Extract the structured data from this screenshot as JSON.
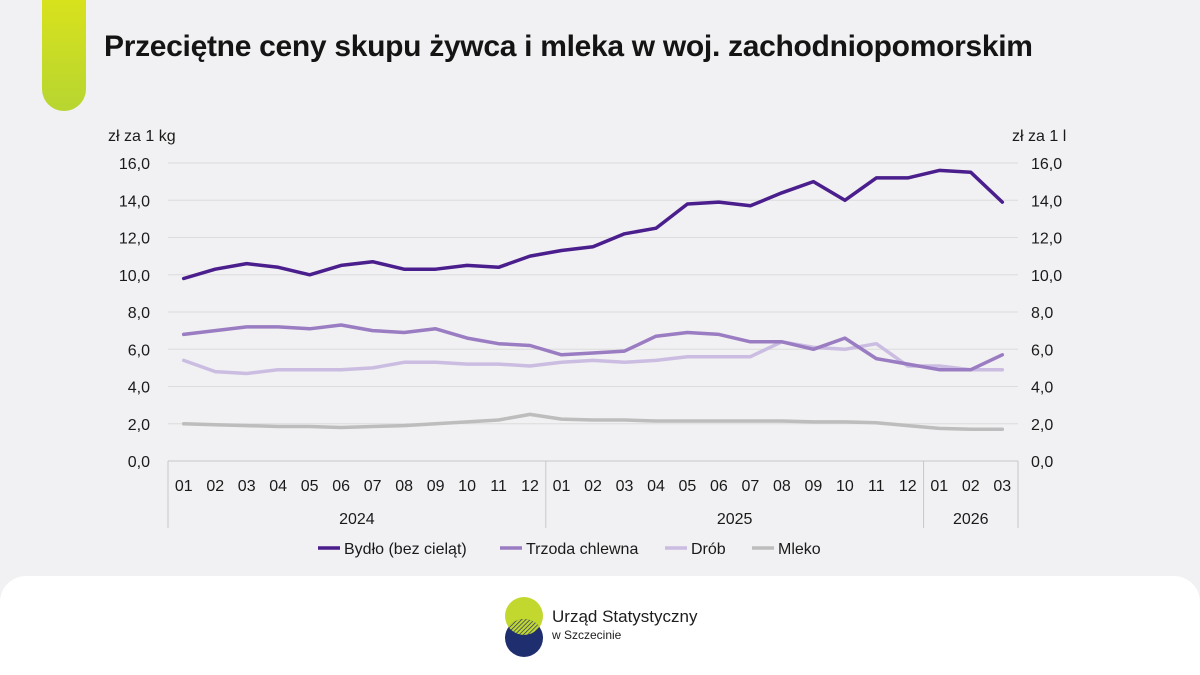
{
  "title": "Przeciętne ceny skupu żywca i mleka w woj. zachodniopomorskim",
  "logo": {
    "line1": "Urząd Statystyczny",
    "line2": "w Szczecinie"
  },
  "colors": {
    "background": "#f1f0f2",
    "accent": "#c8dc28",
    "logo_green": "#c3d82e",
    "logo_navy": "#1f2e6e"
  },
  "chart_data": {
    "type": "line",
    "title": "Przeciętne ceny skupu żywca i mleka w woj. zachodniopomorskim",
    "ylabel": "zł za 1 kg",
    "y2label": "zł za 1 l",
    "ylim": [
      0,
      16
    ],
    "yticks": [
      "0,0",
      "2,0",
      "4,0",
      "6,0",
      "8,0",
      "10,0",
      "12,0",
      "14,0",
      "16,0"
    ],
    "grid": true,
    "legend_position": "bottom",
    "categories": [
      "01",
      "02",
      "03",
      "04",
      "05",
      "06",
      "07",
      "08",
      "09",
      "10",
      "11",
      "12",
      "01",
      "02",
      "03",
      "04",
      "05",
      "06",
      "07",
      "08",
      "09",
      "10",
      "11",
      "12",
      "01",
      "02",
      "03"
    ],
    "year_groups": [
      {
        "label": "2024",
        "count": 12
      },
      {
        "label": "2025",
        "count": 12
      },
      {
        "label": "2026",
        "count": 3
      }
    ],
    "series": [
      {
        "name": "Bydło (bez cieląt)",
        "color": "#4a1e8c",
        "values": [
          9.8,
          10.3,
          10.6,
          10.4,
          10.0,
          10.5,
          10.7,
          10.3,
          10.3,
          10.5,
          10.4,
          11.0,
          11.3,
          11.5,
          12.2,
          12.5,
          13.8,
          13.9,
          13.7,
          14.4,
          15.0,
          14.0,
          15.2,
          15.2,
          15.6,
          15.5,
          13.9
        ]
      },
      {
        "name": "Trzoda chlewna",
        "color": "#9a7cc2",
        "values": [
          6.8,
          7.0,
          7.2,
          7.2,
          7.1,
          7.3,
          7.0,
          6.9,
          7.1,
          6.6,
          6.3,
          6.2,
          5.7,
          5.8,
          5.9,
          6.7,
          6.9,
          6.8,
          6.4,
          6.4,
          6.0,
          6.6,
          5.5,
          5.2,
          4.9,
          4.9,
          5.7
        ]
      },
      {
        "name": "Drób",
        "color": "#cbbde2",
        "values": [
          5.4,
          4.8,
          4.7,
          4.9,
          4.9,
          4.9,
          5.0,
          5.3,
          5.3,
          5.2,
          5.2,
          5.1,
          5.3,
          5.4,
          5.3,
          5.4,
          5.6,
          5.6,
          5.6,
          6.4,
          6.1,
          6.0,
          6.3,
          5.1,
          5.1,
          4.9,
          4.9
        ]
      },
      {
        "name": "Mleko",
        "color": "#bdbdbd",
        "values": [
          2.0,
          1.95,
          1.9,
          1.85,
          1.85,
          1.8,
          1.85,
          1.9,
          2.0,
          2.1,
          2.2,
          2.5,
          2.25,
          2.2,
          2.2,
          2.15,
          2.15,
          2.15,
          2.15,
          2.15,
          2.1,
          2.1,
          2.05,
          1.9,
          1.75,
          1.7,
          1.7
        ]
      }
    ]
  }
}
